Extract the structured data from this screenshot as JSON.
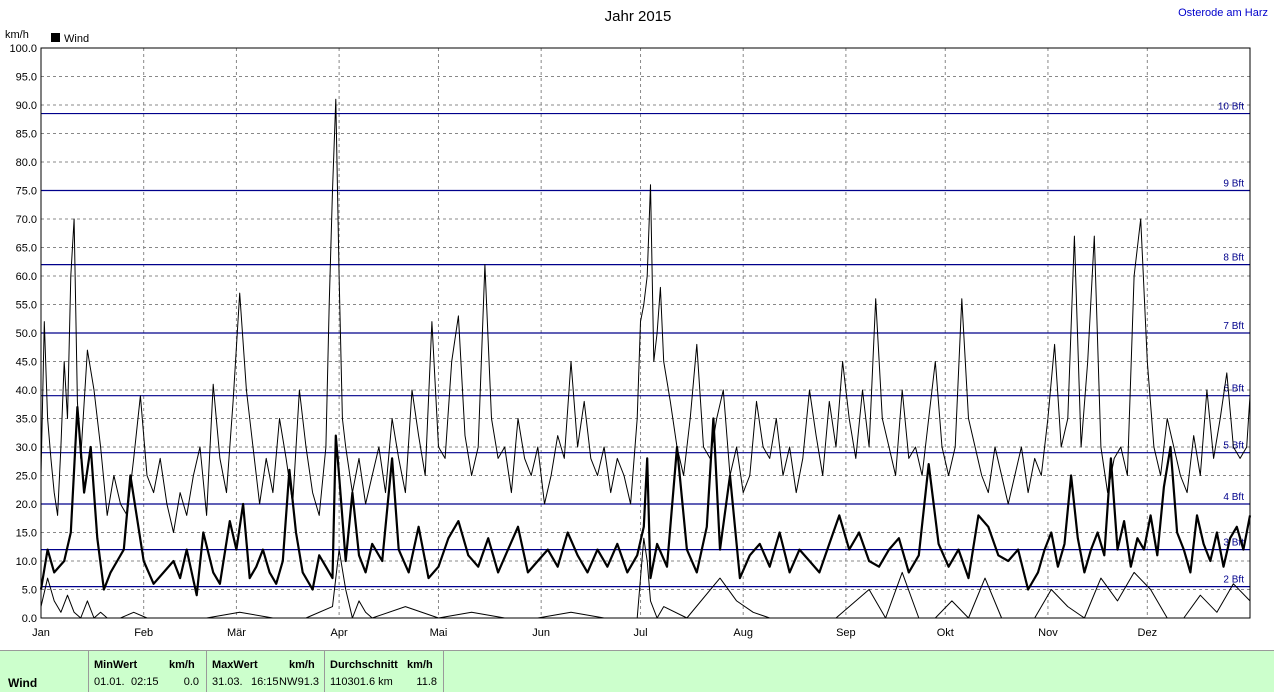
{
  "header": {
    "location": "Osterode am Harz"
  },
  "chart_data": {
    "type": "line",
    "title": "Jahr 2015",
    "ylabel": "km/h",
    "ylim": [
      0,
      100
    ],
    "yticks": [
      "0.0",
      "5.0",
      "10.0",
      "15.0",
      "20.0",
      "25.0",
      "30.0",
      "35.0",
      "40.0",
      "45.0",
      "50.0",
      "55.0",
      "60.0",
      "65.0",
      "70.0",
      "75.0",
      "80.0",
      "85.0",
      "90.0",
      "95.0",
      "100.0"
    ],
    "xlim": [
      0,
      365
    ],
    "months": [
      {
        "label": "Jan",
        "day": 0
      },
      {
        "label": "Feb",
        "day": 31
      },
      {
        "label": "Mär",
        "day": 59
      },
      {
        "label": "Apr",
        "day": 90
      },
      {
        "label": "Mai",
        "day": 120
      },
      {
        "label": "Jun",
        "day": 151
      },
      {
        "label": "Jul",
        "day": 181
      },
      {
        "label": "Aug",
        "day": 212
      },
      {
        "label": "Sep",
        "day": 243
      },
      {
        "label": "Okt",
        "day": 273
      },
      {
        "label": "Nov",
        "day": 304
      },
      {
        "label": "Dez",
        "day": 334
      }
    ],
    "grid": true,
    "legend": {
      "position": "top-left",
      "label": "Wind",
      "color": "#000000"
    },
    "beaufort": [
      {
        "label": "2 Bft",
        "value": 5.5
      },
      {
        "label": "3 Bft",
        "value": 12
      },
      {
        "label": "4 Bft",
        "value": 20
      },
      {
        "label": "5 Bft",
        "value": 29
      },
      {
        "label": "6 Bft",
        "value": 39
      },
      {
        "label": "7 Bft",
        "value": 50
      },
      {
        "label": "8 Bft",
        "value": 62
      },
      {
        "label": "9 Bft",
        "value": 75
      },
      {
        "label": "10 Bft",
        "value": 88.5
      }
    ],
    "beaufort_color": "#00008b",
    "series": [
      {
        "name": "Wind",
        "style": "avg",
        "x": [
          0,
          2,
          4,
          7,
          9,
          11,
          13,
          15,
          17,
          19,
          21,
          23,
          25,
          27,
          31,
          34,
          37,
          40,
          42,
          44,
          47,
          49,
          52,
          54,
          57,
          59,
          61,
          63,
          65,
          67,
          69,
          71,
          73,
          75,
          77,
          79,
          82,
          84,
          86,
          88,
          89,
          90,
          92,
          94,
          96,
          98,
          100,
          103,
          106,
          108,
          111,
          114,
          117,
          120,
          123,
          126,
          129,
          132,
          135,
          138,
          141,
          144,
          147,
          150,
          153,
          156,
          159,
          162,
          165,
          168,
          171,
          174,
          177,
          180,
          182,
          183,
          184,
          186,
          189,
          192,
          195,
          198,
          201,
          203,
          205,
          208,
          211,
          214,
          217,
          220,
          223,
          226,
          229,
          232,
          235,
          238,
          241,
          244,
          247,
          250,
          253,
          256,
          259,
          262,
          265,
          268,
          271,
          274,
          277,
          280,
          283,
          286,
          289,
          292,
          295,
          298,
          301,
          303,
          305,
          307,
          309,
          311,
          313,
          315,
          317,
          319,
          321,
          323,
          325,
          327,
          329,
          331,
          333,
          335,
          337,
          339,
          341,
          343,
          345,
          347,
          349,
          351,
          353,
          355,
          357,
          359,
          361,
          363,
          365
        ],
        "y": [
          5,
          12,
          8,
          10,
          15,
          37,
          22,
          30,
          14,
          5,
          8,
          10,
          12,
          25,
          10,
          6,
          8,
          10,
          7,
          12,
          4,
          15,
          8,
          6,
          17,
          12,
          20,
          7,
          9,
          12,
          8,
          6,
          10,
          26,
          15,
          8,
          5,
          11,
          9,
          7,
          32,
          25,
          10,
          22,
          11,
          8,
          13,
          10,
          28,
          12,
          8,
          16,
          7,
          9,
          14,
          17,
          11,
          9,
          14,
          8,
          12,
          16,
          8,
          10,
          12,
          9,
          15,
          11,
          8,
          12,
          9,
          13,
          8,
          11,
          16,
          28,
          7,
          13,
          9,
          30,
          12,
          8,
          16,
          35,
          12,
          25,
          7,
          11,
          13,
          9,
          15,
          8,
          12,
          10,
          8,
          13,
          18,
          12,
          15,
          10,
          9,
          12,
          14,
          8,
          11,
          27,
          13,
          9,
          12,
          7,
          18,
          16,
          11,
          10,
          12,
          5,
          8,
          12,
          15,
          9,
          13,
          25,
          14,
          8,
          12,
          15,
          11,
          28,
          12,
          17,
          9,
          14,
          12,
          18,
          11,
          23,
          30,
          15,
          12,
          8,
          18,
          13,
          10,
          15,
          9,
          14,
          16,
          12,
          18
        ]
      },
      {
        "name": "Wind",
        "style": "max",
        "x": [
          0,
          1,
          2,
          3,
          4,
          5,
          6,
          7,
          8,
          9,
          10,
          11,
          12,
          14,
          16,
          18,
          20,
          22,
          24,
          26,
          28,
          30,
          32,
          34,
          36,
          38,
          40,
          42,
          44,
          46,
          48,
          50,
          52,
          54,
          56,
          58,
          60,
          62,
          64,
          66,
          68,
          70,
          72,
          74,
          76,
          78,
          80,
          82,
          84,
          86,
          87,
          88,
          89,
          90,
          91,
          92,
          94,
          96,
          98,
          100,
          102,
          104,
          106,
          108,
          110,
          112,
          114,
          116,
          118,
          120,
          122,
          124,
          126,
          128,
          130,
          132,
          134,
          136,
          138,
          140,
          142,
          144,
          146,
          148,
          150,
          152,
          154,
          156,
          158,
          160,
          162,
          164,
          166,
          168,
          170,
          172,
          174,
          176,
          178,
          180,
          181,
          182,
          183,
          184,
          185,
          186,
          187,
          188,
          190,
          192,
          194,
          196,
          198,
          200,
          202,
          204,
          206,
          208,
          210,
          212,
          214,
          216,
          218,
          220,
          222,
          224,
          226,
          228,
          230,
          232,
          234,
          236,
          238,
          240,
          242,
          244,
          246,
          248,
          250,
          252,
          254,
          256,
          258,
          260,
          262,
          264,
          266,
          268,
          270,
          272,
          274,
          276,
          278,
          280,
          282,
          284,
          286,
          288,
          290,
          292,
          294,
          296,
          298,
          300,
          302,
          304,
          306,
          308,
          310,
          312,
          314,
          316,
          318,
          320,
          322,
          324,
          326,
          328,
          330,
          332,
          334,
          336,
          338,
          340,
          342,
          344,
          346,
          348,
          350,
          352,
          354,
          356,
          358,
          360,
          362,
          364,
          365
        ],
        "y": [
          25,
          52,
          35,
          28,
          22,
          18,
          30,
          45,
          35,
          60,
          70,
          38,
          28,
          47,
          40,
          30,
          18,
          25,
          20,
          18,
          28,
          39,
          25,
          22,
          28,
          20,
          15,
          22,
          18,
          25,
          30,
          18,
          41,
          28,
          22,
          38,
          57,
          40,
          30,
          20,
          28,
          22,
          35,
          28,
          20,
          40,
          30,
          22,
          18,
          30,
          55,
          75,
          91,
          60,
          35,
          30,
          22,
          28,
          20,
          25,
          30,
          22,
          35,
          28,
          22,
          40,
          32,
          25,
          52,
          30,
          28,
          45,
          53,
          32,
          25,
          30,
          62,
          35,
          28,
          30,
          22,
          35,
          28,
          25,
          30,
          20,
          25,
          32,
          28,
          45,
          30,
          38,
          28,
          25,
          30,
          22,
          28,
          25,
          20,
          35,
          52,
          55,
          60,
          76,
          45,
          50,
          58,
          45,
          38,
          30,
          25,
          35,
          48,
          30,
          28,
          35,
          40,
          25,
          30,
          22,
          25,
          38,
          30,
          28,
          35,
          25,
          30,
          22,
          28,
          40,
          32,
          25,
          38,
          30,
          45,
          35,
          28,
          40,
          30,
          56,
          35,
          30,
          25,
          40,
          28,
          30,
          25,
          35,
          45,
          30,
          25,
          30,
          56,
          35,
          30,
          25,
          22,
          30,
          25,
          20,
          25,
          30,
          22,
          28,
          25,
          35,
          48,
          30,
          35,
          67,
          30,
          45,
          67,
          30,
          22,
          28,
          30,
          25,
          60,
          70,
          45,
          30,
          25,
          35,
          30,
          25,
          22,
          32,
          25,
          40,
          28,
          35,
          43,
          30,
          28,
          30,
          39
        ]
      },
      {
        "name": "Wind",
        "style": "min",
        "x": [
          0,
          2,
          4,
          6,
          8,
          10,
          12,
          14,
          16,
          18,
          20,
          24,
          28,
          32,
          40,
          50,
          60,
          70,
          80,
          88,
          90,
          92,
          94,
          96,
          98,
          100,
          110,
          120,
          130,
          140,
          150,
          160,
          170,
          180,
          182,
          183,
          184,
          186,
          188,
          195,
          205,
          210,
          215,
          220,
          230,
          240,
          250,
          255,
          260,
          265,
          270,
          275,
          280,
          285,
          290,
          300,
          305,
          310,
          315,
          320,
          325,
          330,
          335,
          340,
          345,
          350,
          355,
          360,
          365
        ],
        "y": [
          2,
          7,
          3,
          1,
          4,
          1,
          0,
          3,
          0,
          1,
          0,
          0,
          1,
          0,
          0,
          0,
          1,
          0,
          0,
          2,
          12,
          5,
          0,
          3,
          1,
          0,
          2,
          0,
          1,
          0,
          0,
          1,
          0,
          0,
          14,
          10,
          3,
          0,
          2,
          0,
          7,
          3,
          1,
          0,
          0,
          0,
          5,
          0,
          8,
          0,
          0,
          3,
          0,
          7,
          0,
          0,
          5,
          2,
          0,
          7,
          3,
          8,
          5,
          0,
          0,
          4,
          1,
          6,
          3
        ]
      }
    ]
  },
  "footer": {
    "series_name": "Wind",
    "min": {
      "label": "MinWert",
      "unit": "km/h",
      "date": "01.01.",
      "time": "02:15",
      "value": "0.0"
    },
    "max": {
      "label": "MaxWert",
      "unit": "km/h",
      "date": "31.03.",
      "time": "16:15",
      "dir": "NW",
      "value": "91.3"
    },
    "avg": {
      "label": "Durchschnitt",
      "unit": "km/h",
      "distance": "110301.6 km",
      "value": "11.8"
    }
  }
}
